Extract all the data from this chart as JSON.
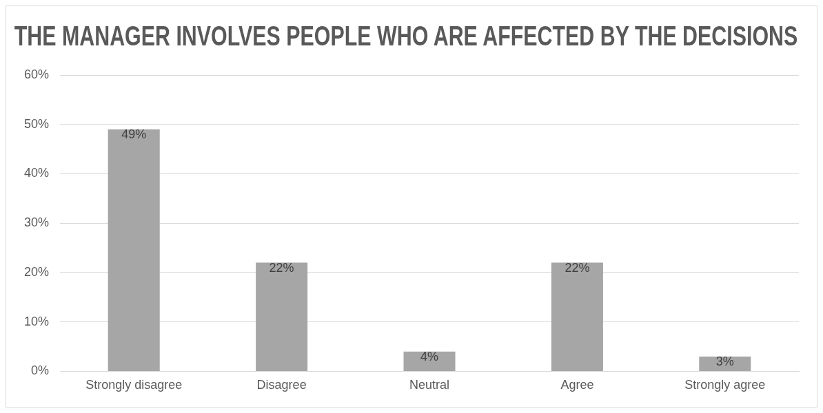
{
  "chart_data": {
    "type": "bar",
    "title": "THE MANAGER INVOLVES PEOPLE WHO ARE AFFECTED BY THE DECISIONS",
    "categories": [
      "Strongly disagree",
      "Disagree",
      "Neutral",
      "Agree",
      "Strongly agree"
    ],
    "values": [
      49,
      22,
      4,
      22,
      3
    ],
    "value_labels": [
      "49%",
      "22%",
      "4%",
      "22%",
      "3%"
    ],
    "color": "#a6a6a6",
    "ylim": [
      0,
      60
    ],
    "yticks": [
      {
        "value": 0,
        "label": "0%"
      },
      {
        "value": 10,
        "label": "10%"
      },
      {
        "value": 20,
        "label": "20%"
      },
      {
        "value": 30,
        "label": "30%"
      },
      {
        "value": 40,
        "label": "40%"
      },
      {
        "value": 50,
        "label": "50%"
      },
      {
        "value": 60,
        "label": "60%"
      }
    ],
    "grid": "y",
    "legend": false
  }
}
